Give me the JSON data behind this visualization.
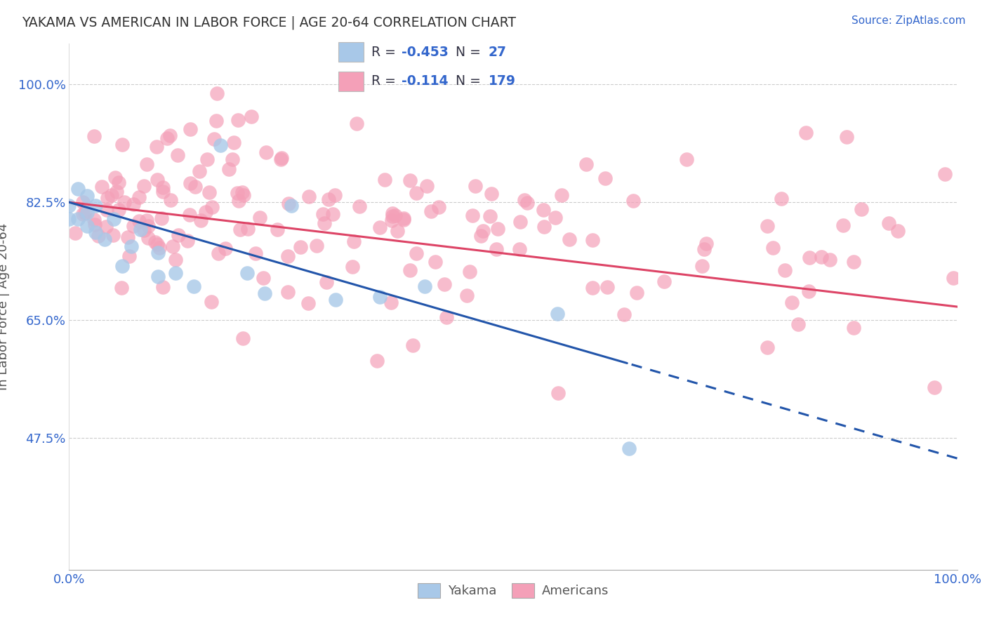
{
  "title": "YAKAMA VS AMERICAN IN LABOR FORCE | AGE 20-64 CORRELATION CHART",
  "source_text": "Source: ZipAtlas.com",
  "ylabel": "In Labor Force | Age 20-64",
  "xlim": [
    0.0,
    1.0
  ],
  "ylim": [
    0.28,
    1.06
  ],
  "yticks": [
    0.475,
    0.65,
    0.825,
    1.0
  ],
  "ytick_labels": [
    "47.5%",
    "65.0%",
    "82.5%",
    "100.0%"
  ],
  "xtick_labels": [
    "0.0%",
    "100.0%"
  ],
  "legend_R_yakama": "-0.453",
  "legend_N_yakama": "27",
  "legend_R_american": "-0.114",
  "legend_N_american": "179",
  "yakama_color": "#a8c8e8",
  "american_color": "#f4a0b8",
  "trend_yakama_color": "#2255aa",
  "trend_american_color": "#dd4466",
  "background_color": "#ffffff",
  "grid_color": "#cccccc",
  "title_color": "#333333",
  "axis_label_color": "#555555",
  "tick_label_color": "#3366cc",
  "legend_text_color": "#3366cc",
  "legend_dark_color": "#333344",
  "yakama_seed": 42,
  "american_seed": 99
}
